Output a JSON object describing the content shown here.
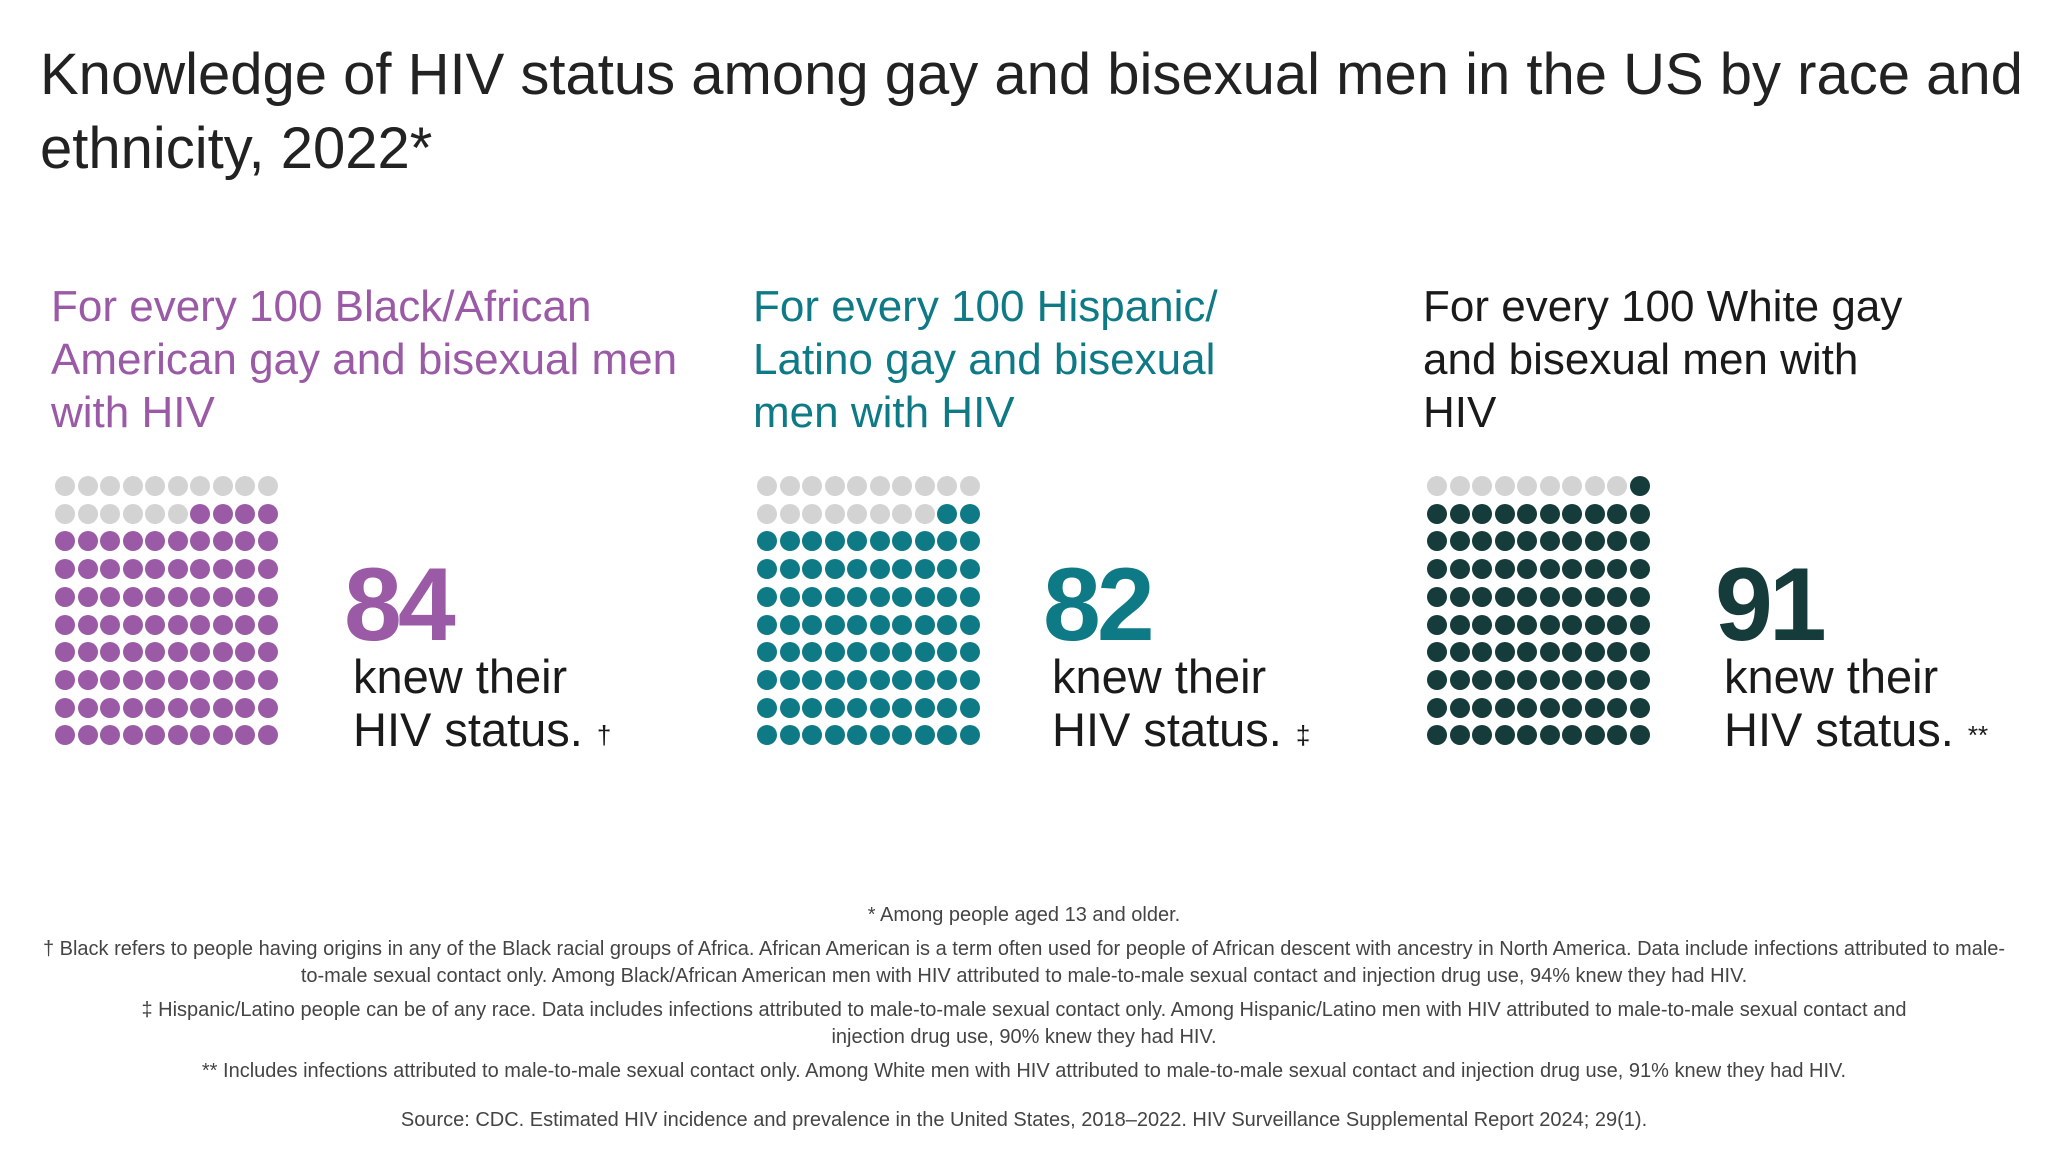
{
  "title": "Knowledge of HIV status among gay and bisexual men in the US by race and ethnicity, 2022*",
  "colors": {
    "black_african_american": "#9b5aa6",
    "hispanic_latino": "#0e7a86",
    "white": "#153b3a",
    "unknown": "#d3d3d3"
  },
  "groups": [
    {
      "heading": "For every 100 Black/African American gay and bisexual men with HIV",
      "value": 84,
      "value_label": "84",
      "line1": "knew their",
      "line2": "HIV status.",
      "mark": "†"
    },
    {
      "heading": "For every 100 Hispanic/ Latino gay and bisexual men with HIV",
      "value": 82,
      "value_label": "82",
      "line1": "knew their",
      "line2": "HIV status.",
      "mark": "‡"
    },
    {
      "heading": "For every 100 White gay and bisexual men with HIV",
      "value": 91,
      "value_label": "91",
      "line1": "knew their",
      "line2": "HIV status.",
      "mark": "**"
    }
  ],
  "footnotes": {
    "age": "* Among people aged 13 and older.",
    "black": "† Black refers to people having origins in any of the Black racial groups of Africa. African American is a term often used for people of African descent with ancestry in North America. Data include infections attributed to male-to-male sexual contact only. Among Black/African American men with HIV attributed to male-to-male sexual contact and injection drug use, 94% knew they had HIV.",
    "hispanic": "‡ Hispanic/Latino people can be of any race. Data includes infections attributed to male-to-male sexual contact only. Among Hispanic/Latino men with HIV attributed to male-to-male sexual contact and injection drug use, 90% knew they had HIV.",
    "white": "** Includes infections attributed to male-to-male sexual contact only. Among White men with HIV attributed to male-to-male sexual contact and injection drug use, 91% knew they had HIV.",
    "source": "Source: CDC. Estimated HIV incidence and prevalence in the United States, 2018–2022. HIV Surveillance Supplemental Report 2024; 29(1)."
  }
}
